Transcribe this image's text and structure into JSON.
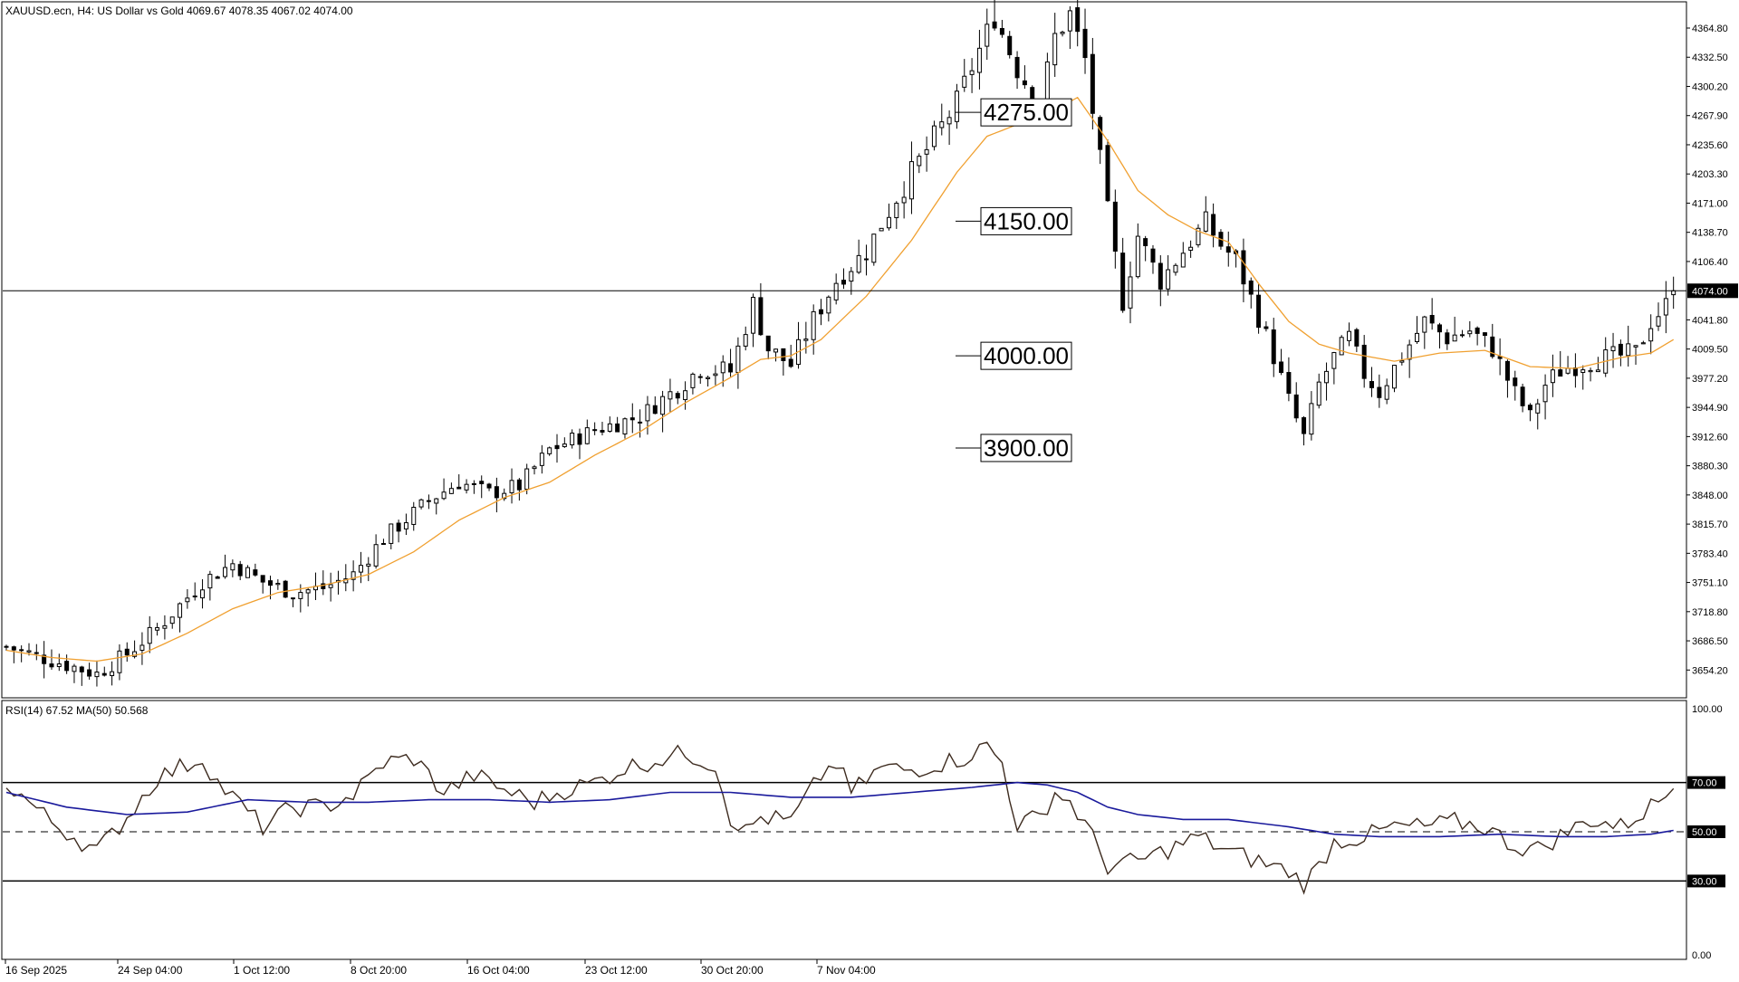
{
  "header": {
    "symbol_label": "XAUUSD.ecn, H4:  US Dollar vs Gold  4069.67 4078.35 4067.02 4074.00"
  },
  "rsi_panel": {
    "label": "RSI(14) 67.52 MA(50) 50.568"
  },
  "chart_data": [
    {
      "type": "candlestick",
      "symbol": "XAUUSD.ecn",
      "timeframe": "H4",
      "description": "US Dollar vs Gold",
      "ohlc_last": {
        "open": 4069.67,
        "high": 4078.35,
        "low": 4067.02,
        "close": 4074.0
      },
      "current_price": 4074.0,
      "current_price_label": "4074.00",
      "y_range": [
        3628,
        4385
      ],
      "y_ticks": [
        "4364.80",
        "4332.50",
        "4300.20",
        "4267.90",
        "4235.60",
        "4203.30",
        "4171.00",
        "4138.70",
        "4106.40",
        "4074.00",
        "4041.80",
        "4009.50",
        "3977.20",
        "3944.90",
        "3912.60",
        "3880.30",
        "3848.00",
        "3815.70",
        "3783.40",
        "3751.10",
        "3718.80",
        "3686.50",
        "3654.20"
      ],
      "x_labels": [
        "16 Sep 2025",
        "24 Sep 04:00",
        "1 Oct 12:00",
        "8 Oct 20:00",
        "16 Oct 04:00",
        "23 Oct 12:00",
        "30 Oct 20:00",
        "7 Nov 04:00"
      ],
      "price_path": [
        [
          0,
          3680
        ],
        [
          8,
          3660
        ],
        [
          12,
          3650
        ],
        [
          16,
          3672
        ],
        [
          20,
          3700
        ],
        [
          26,
          3752
        ],
        [
          30,
          3772
        ],
        [
          34,
          3752
        ],
        [
          38,
          3740
        ],
        [
          42,
          3745
        ],
        [
          46,
          3760
        ],
        [
          50,
          3800
        ],
        [
          56,
          3842
        ],
        [
          60,
          3862
        ],
        [
          64,
          3850
        ],
        [
          68,
          3858
        ],
        [
          72,
          3898
        ],
        [
          78,
          3920
        ],
        [
          84,
          3935
        ],
        [
          88,
          3960
        ],
        [
          92,
          3988
        ],
        [
          96,
          3985
        ],
        [
          99,
          4060
        ],
        [
          101,
          4010
        ],
        [
          104,
          3992
        ],
        [
          107,
          4042
        ],
        [
          110,
          4085
        ],
        [
          114,
          4118
        ],
        [
          118,
          4178
        ],
        [
          122,
          4230
        ],
        [
          126,
          4282
        ],
        [
          128,
          4322
        ],
        [
          131,
          4378
        ],
        [
          134,
          4320
        ],
        [
          137,
          4280
        ],
        [
          139,
          4355
        ],
        [
          141,
          4380
        ],
        [
          143,
          4330
        ],
        [
          146,
          4160
        ],
        [
          148,
          4062
        ],
        [
          150,
          4135
        ],
        [
          153,
          4085
        ],
        [
          156,
          4118
        ],
        [
          159,
          4150
        ],
        [
          161,
          4125
        ],
        [
          163,
          4108
        ],
        [
          166,
          4045
        ],
        [
          168,
          4002
        ],
        [
          170,
          3952
        ],
        [
          172,
          3912
        ],
        [
          174,
          3970
        ],
        [
          176,
          4000
        ],
        [
          178,
          4022
        ],
        [
          180,
          3982
        ],
        [
          182,
          3962
        ],
        [
          185,
          4002
        ],
        [
          188,
          4040
        ],
        [
          191,
          4022
        ],
        [
          194,
          4030
        ],
        [
          197,
          4010
        ],
        [
          200,
          3960
        ],
        [
          202,
          3935
        ],
        [
          204,
          3970
        ],
        [
          206,
          3986
        ],
        [
          208,
          3992
        ],
        [
          211,
          3998
        ],
        [
          214,
          4002
        ],
        [
          216,
          4005
        ],
        [
          218,
          4040
        ],
        [
          220,
          4058
        ],
        [
          221,
          4074
        ]
      ],
      "moving_average": {
        "period": 20,
        "color": "#F0A030",
        "path": [
          [
            0,
            3676
          ],
          [
            6,
            3668
          ],
          [
            12,
            3664
          ],
          [
            18,
            3672
          ],
          [
            24,
            3695
          ],
          [
            30,
            3722
          ],
          [
            36,
            3740
          ],
          [
            42,
            3748
          ],
          [
            48,
            3760
          ],
          [
            54,
            3785
          ],
          [
            60,
            3820
          ],
          [
            66,
            3845
          ],
          [
            72,
            3862
          ],
          [
            78,
            3892
          ],
          [
            84,
            3918
          ],
          [
            90,
            3950
          ],
          [
            96,
            3978
          ],
          [
            100,
            3998
          ],
          [
            104,
            4002
          ],
          [
            108,
            4020
          ],
          [
            114,
            4068
          ],
          [
            120,
            4130
          ],
          [
            126,
            4205
          ],
          [
            130,
            4245
          ],
          [
            134,
            4258
          ],
          [
            138,
            4270
          ],
          [
            142,
            4288
          ],
          [
            146,
            4240
          ],
          [
            150,
            4185
          ],
          [
            154,
            4158
          ],
          [
            158,
            4140
          ],
          [
            162,
            4128
          ],
          [
            166,
            4082
          ],
          [
            170,
            4040
          ],
          [
            174,
            4015
          ],
          [
            178,
            4005
          ],
          [
            184,
            3996
          ],
          [
            190,
            4005
          ],
          [
            196,
            4008
          ],
          [
            202,
            3990
          ],
          [
            208,
            3988
          ],
          [
            214,
            4000
          ],
          [
            218,
            4005
          ],
          [
            221,
            4020
          ]
        ]
      },
      "zones": [
        {
          "kind": "resistance",
          "label": "4275.00",
          "price_top": 4293,
          "price_bottom": 4250,
          "from_x": 141,
          "color": "#FF6347"
        },
        {
          "kind": "resistance",
          "label": "4150.00",
          "price_top": 4170,
          "price_bottom": 4132,
          "from_x": 147,
          "color": "#FF6347"
        },
        {
          "kind": "support",
          "label": "4000.00",
          "price_top": 4018,
          "price_bottom": 3986,
          "from_x": 211,
          "color": "#00BFFF"
        },
        {
          "kind": "support",
          "label": "3900.00",
          "price_top": 3918,
          "price_bottom": 3882,
          "from_x": 171,
          "color": "#00BFFF"
        }
      ],
      "colors": {
        "up": "#000000",
        "down": "#000000",
        "current_price_line": "#000000"
      }
    },
    {
      "type": "line",
      "name": "RSI(14)",
      "rsi_value": 67.52,
      "ma_period": 50,
      "ma_value": 50.568,
      "y_range": [
        0,
        100
      ],
      "y_ticks": [
        "100.00",
        "70.00",
        "50.00",
        "30.00",
        "0.00"
      ],
      "levels": [
        70,
        50,
        30
      ],
      "series": [
        {
          "name": "RSI(14)",
          "color": "#3D2B1F",
          "path": [
            [
              0,
              70
            ],
            [
              6,
              54
            ],
            [
              12,
              42
            ],
            [
              16,
              56
            ],
            [
              20,
              72
            ],
            [
              26,
              80
            ],
            [
              28,
              70
            ],
            [
              34,
              52
            ],
            [
              38,
              60
            ],
            [
              42,
              60
            ],
            [
              46,
              65
            ],
            [
              50,
              78
            ],
            [
              54,
              80
            ],
            [
              58,
              66
            ],
            [
              62,
              73
            ],
            [
              66,
              67
            ],
            [
              70,
              62
            ],
            [
              74,
              67
            ],
            [
              78,
              70
            ],
            [
              82,
              76
            ],
            [
              86,
              79
            ],
            [
              90,
              82
            ],
            [
              94,
              77
            ],
            [
              96,
              56
            ],
            [
              98,
              50
            ],
            [
              100,
              56
            ],
            [
              104,
              54
            ],
            [
              108,
              73
            ],
            [
              110,
              78
            ],
            [
              112,
              66
            ],
            [
              116,
              76
            ],
            [
              120,
              75
            ],
            [
              124,
              78
            ],
            [
              127,
              80
            ],
            [
              130,
              85
            ],
            [
              132,
              78
            ],
            [
              134,
              53
            ],
            [
              137,
              56
            ],
            [
              139,
              66
            ],
            [
              141,
              62
            ],
            [
              143,
              53
            ],
            [
              146,
              36
            ],
            [
              150,
              38
            ],
            [
              155,
              44
            ],
            [
              158,
              48
            ],
            [
              162,
              42
            ],
            [
              166,
              38
            ],
            [
              170,
              34
            ],
            [
              172,
              29
            ],
            [
              174,
              36
            ],
            [
              176,
              46
            ],
            [
              180,
              48
            ],
            [
              184,
              52
            ],
            [
              188,
              52
            ],
            [
              192,
              54
            ],
            [
              196,
              52
            ],
            [
              200,
              44
            ],
            [
              203,
              43
            ],
            [
              207,
              50
            ],
            [
              210,
              55
            ],
            [
              214,
              52
            ],
            [
              217,
              58
            ],
            [
              220,
              65
            ],
            [
              221,
              67.52
            ]
          ]
        },
        {
          "name": "MA(50)",
          "color": "#1A1A9C",
          "path": [
            [
              0,
              66
            ],
            [
              8,
              60
            ],
            [
              16,
              57
            ],
            [
              24,
              58
            ],
            [
              32,
              63
            ],
            [
              40,
              62
            ],
            [
              48,
              62
            ],
            [
              56,
              63
            ],
            [
              64,
              63
            ],
            [
              72,
              62
            ],
            [
              80,
              63
            ],
            [
              88,
              66
            ],
            [
              96,
              66
            ],
            [
              104,
              64
            ],
            [
              112,
              64
            ],
            [
              120,
              66
            ],
            [
              128,
              68
            ],
            [
              134,
              70
            ],
            [
              138,
              69
            ],
            [
              142,
              66
            ],
            [
              146,
              60
            ],
            [
              150,
              57
            ],
            [
              156,
              55
            ],
            [
              162,
              55
            ],
            [
              170,
              52
            ],
            [
              176,
              49
            ],
            [
              182,
              48
            ],
            [
              190,
              48
            ],
            [
              198,
              49
            ],
            [
              206,
              48
            ],
            [
              212,
              48
            ],
            [
              218,
              49
            ],
            [
              221,
              50.568
            ]
          ]
        }
      ]
    }
  ]
}
